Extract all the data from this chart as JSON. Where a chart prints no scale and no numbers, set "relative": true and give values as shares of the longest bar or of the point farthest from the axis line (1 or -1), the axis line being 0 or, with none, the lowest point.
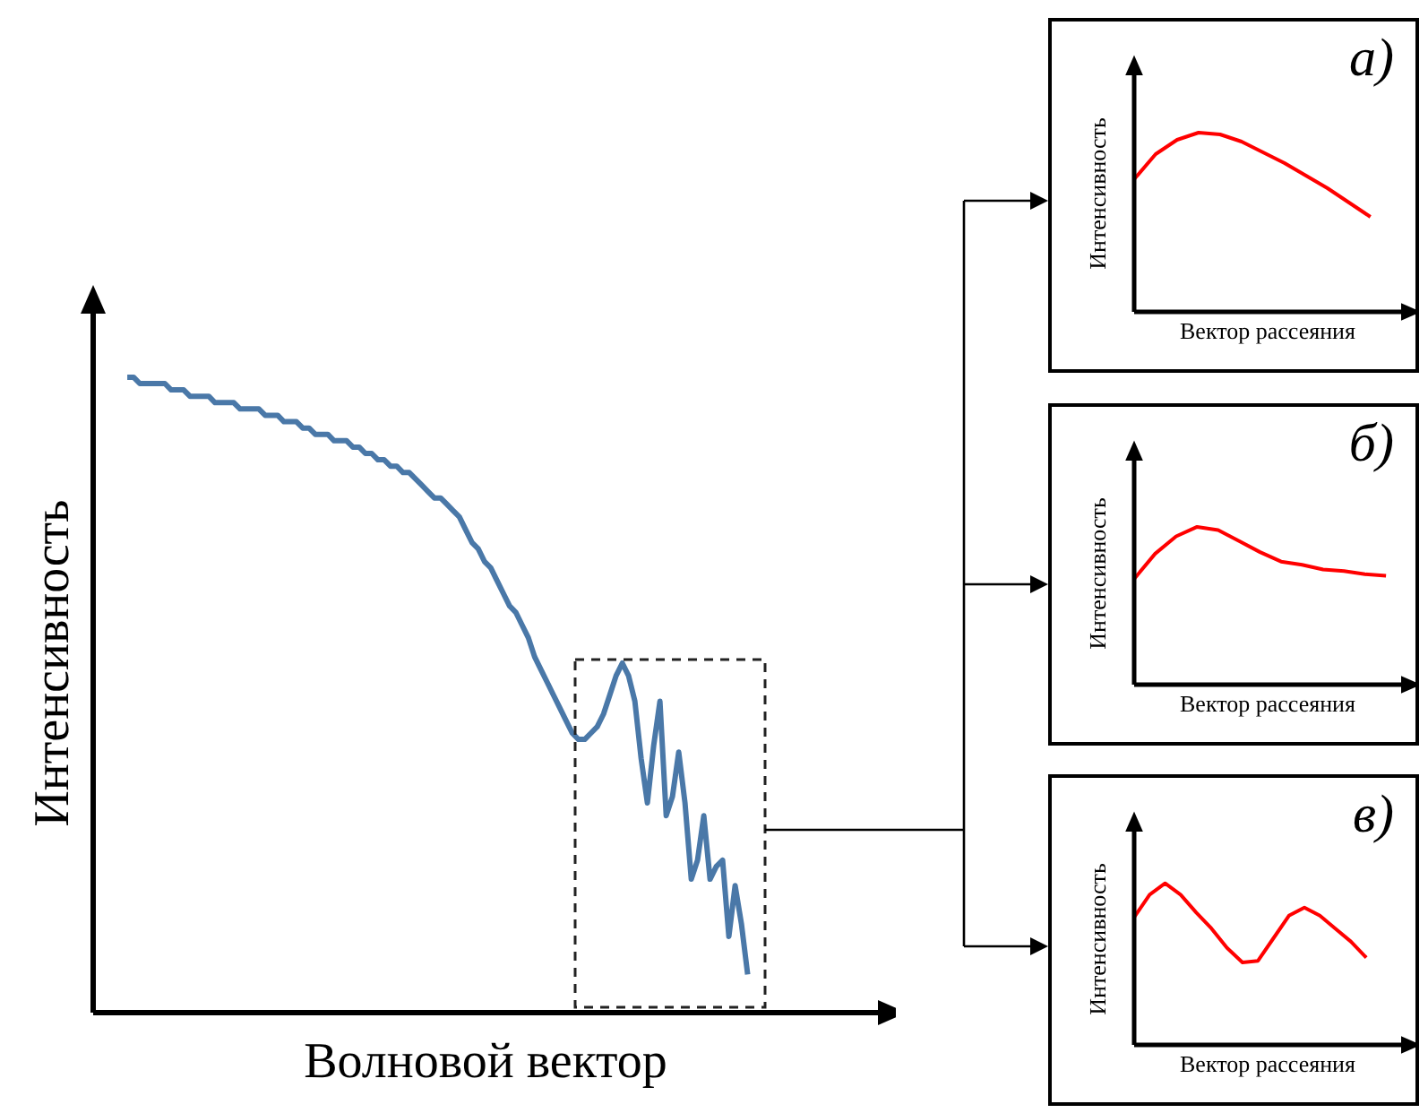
{
  "chart_data": [
    {
      "type": "line",
      "relative": true,
      "xlabel": "Волновой вектор",
      "ylabel": "Интенсивность",
      "categories": [
        null,
        null,
        null,
        null,
        null,
        null,
        null,
        null,
        null,
        null,
        null,
        null,
        null,
        null,
        null,
        null,
        null,
        null,
        null,
        null,
        null,
        null,
        null,
        null,
        null,
        null,
        null,
        null,
        null,
        null,
        null,
        null,
        null,
        null,
        null,
        null,
        null,
        null,
        null,
        null,
        null,
        null,
        null,
        null,
        null,
        null,
        null,
        null,
        null,
        null,
        null,
        null,
        null,
        null,
        null,
        null,
        null,
        null,
        null,
        null,
        null,
        null,
        null,
        null,
        null,
        null,
        null,
        null,
        null,
        null,
        null,
        null,
        null,
        null,
        null,
        null,
        null,
        null,
        null,
        null,
        null,
        null,
        null,
        null,
        null,
        null,
        null,
        null,
        null,
        null,
        null,
        null,
        null,
        null,
        null,
        null,
        null,
        null,
        null,
        null
      ],
      "marker": "none",
      "series": [
        {
          "color": "#4a78a8",
          "values": [
            1.0,
            1.0,
            0.99,
            0.99,
            0.99,
            0.99,
            0.99,
            0.98,
            0.98,
            0.98,
            0.97,
            0.97,
            0.97,
            0.97,
            0.96,
            0.96,
            0.96,
            0.96,
            0.95,
            0.95,
            0.95,
            0.95,
            0.94,
            0.94,
            0.94,
            0.93,
            0.93,
            0.93,
            0.92,
            0.92,
            0.91,
            0.91,
            0.91,
            0.9,
            0.9,
            0.9,
            0.89,
            0.89,
            0.88,
            0.88,
            0.87,
            0.87,
            0.86,
            0.86,
            0.85,
            0.85,
            0.84,
            0.83,
            0.82,
            0.81,
            0.81,
            0.8,
            0.79,
            0.78,
            0.76,
            0.74,
            0.73,
            0.71,
            0.7,
            0.68,
            0.66,
            0.64,
            0.63,
            0.61,
            0.59,
            0.56,
            0.54,
            0.52,
            0.5,
            0.48,
            0.46,
            0.44,
            0.43,
            0.43,
            0.44,
            0.45,
            0.47,
            0.5,
            0.53,
            0.55,
            0.53,
            0.49,
            0.4,
            0.33,
            0.42,
            0.49,
            0.31,
            0.34,
            0.41,
            0.33,
            0.21,
            0.24,
            0.31,
            0.21,
            0.23,
            0.24,
            0.12,
            0.2,
            0.14,
            0.06
          ]
        }
      ]
    },
    {
      "type": "line",
      "relative": true,
      "title": "а)",
      "xlabel": "Вектор рассеяния",
      "ylabel": "Интенсивность",
      "categories": [
        null,
        null,
        null,
        null,
        null,
        null,
        null,
        null,
        null,
        null,
        null,
        null
      ],
      "marker": "none",
      "series": [
        {
          "color": "#ff0000",
          "values": [
            0.74,
            0.88,
            0.96,
            1.0,
            0.99,
            0.95,
            0.89,
            0.83,
            0.76,
            0.69,
            0.61,
            0.53
          ]
        }
      ]
    },
    {
      "type": "line",
      "relative": true,
      "title": "б)",
      "xlabel": "Вектор рассеяния",
      "ylabel": "Интенсивность",
      "categories": [
        null,
        null,
        null,
        null,
        null,
        null,
        null,
        null,
        null,
        null,
        null,
        null,
        null
      ],
      "marker": "none",
      "series": [
        {
          "color": "#ff0000",
          "values": [
            0.67,
            0.83,
            0.94,
            1.0,
            0.98,
            0.91,
            0.84,
            0.78,
            0.76,
            0.73,
            0.72,
            0.7,
            0.69
          ]
        }
      ]
    },
    {
      "type": "line",
      "relative": true,
      "title": "в)",
      "xlabel": "Вектор рассеяния",
      "ylabel": "Интенсивность",
      "categories": [
        null,
        null,
        null,
        null,
        null,
        null,
        null,
        null,
        null,
        null,
        null,
        null,
        null,
        null,
        null,
        null
      ],
      "marker": "none",
      "series": [
        {
          "color": "#ff0000",
          "values": [
            0.79,
            0.93,
            1.0,
            0.93,
            0.82,
            0.72,
            0.6,
            0.51,
            0.52,
            0.66,
            0.8,
            0.85,
            0.8,
            0.72,
            0.64,
            0.54
          ]
        }
      ]
    }
  ]
}
